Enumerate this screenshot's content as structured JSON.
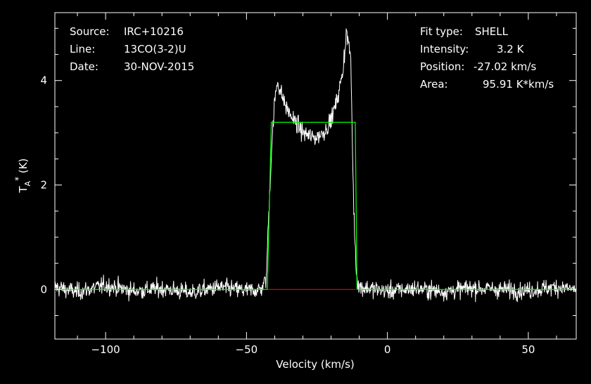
{
  "header": {
    "left": [
      {
        "label": "Source:",
        "value": "IRC+10216"
      },
      {
        "label": "Line:",
        "value": "13CO(3-2)U"
      },
      {
        "label": "Date:",
        "value": "30-NOV-2015"
      }
    ],
    "right": [
      {
        "label": "Fit type:",
        "value": "SHELL"
      },
      {
        "label": "Intensity:",
        "value": "3.2 K"
      },
      {
        "label": "Position:",
        "value": "-27.02 km/s"
      },
      {
        "label": "Area:",
        "value": "95.91 K*km/s"
      }
    ]
  },
  "chart_data": {
    "type": "line",
    "xlabel": "Velocity (km/s)",
    "ylabel": "T_A^* (K)",
    "xlim": [
      -118,
      67
    ],
    "ylim": [
      -0.95,
      5.3
    ],
    "xticks": [
      -100,
      -50,
      0,
      50
    ],
    "xtick_labels": [
      "−100",
      "−50",
      "0",
      "50"
    ],
    "yticks": [
      0,
      2,
      4
    ],
    "ytick_labels": [
      "0",
      "2",
      "4"
    ],
    "colors": {
      "spectrum": "#ffffff",
      "fit": "#00ff00",
      "baseline": "#ff0000",
      "axes": "#ffffff",
      "background": "#000000"
    },
    "series": [
      {
        "name": "spectrum",
        "x": [
          -118,
          -110,
          -100,
          -90,
          -80,
          -70,
          -60,
          -50,
          -45,
          -43,
          -42,
          -41,
          -40,
          -39,
          -38,
          -36,
          -34,
          -32,
          -30,
          -28,
          -26,
          -24,
          -22,
          -20,
          -18,
          -16,
          -14.5,
          -13,
          -12,
          -11,
          -10,
          0,
          10,
          20,
          30,
          40,
          50,
          60,
          67
        ],
        "y": [
          0.05,
          -0.05,
          0.08,
          -0.03,
          0.02,
          -0.06,
          0.04,
          -0.02,
          0.0,
          0.2,
          1.6,
          2.8,
          3.6,
          4.0,
          3.8,
          3.5,
          3.3,
          3.15,
          3.0,
          2.95,
          2.9,
          2.95,
          3.05,
          3.25,
          3.6,
          4.1,
          4.95,
          4.4,
          1.6,
          0.3,
          0.05,
          -0.03,
          0.02,
          -0.04,
          0.03,
          0.0,
          -0.02,
          0.05,
          0.0
        ]
      },
      {
        "name": "shell fit",
        "x": [
          -118,
          -42.6,
          -41.2,
          -11.4,
          -10.8,
          67
        ],
        "y": [
          0,
          0,
          3.2,
          3.2,
          0,
          0
        ]
      },
      {
        "name": "baseline",
        "x": [
          -42.6,
          -11.4
        ],
        "y": [
          0,
          0
        ]
      }
    ],
    "noise_rms": 0.17
  }
}
